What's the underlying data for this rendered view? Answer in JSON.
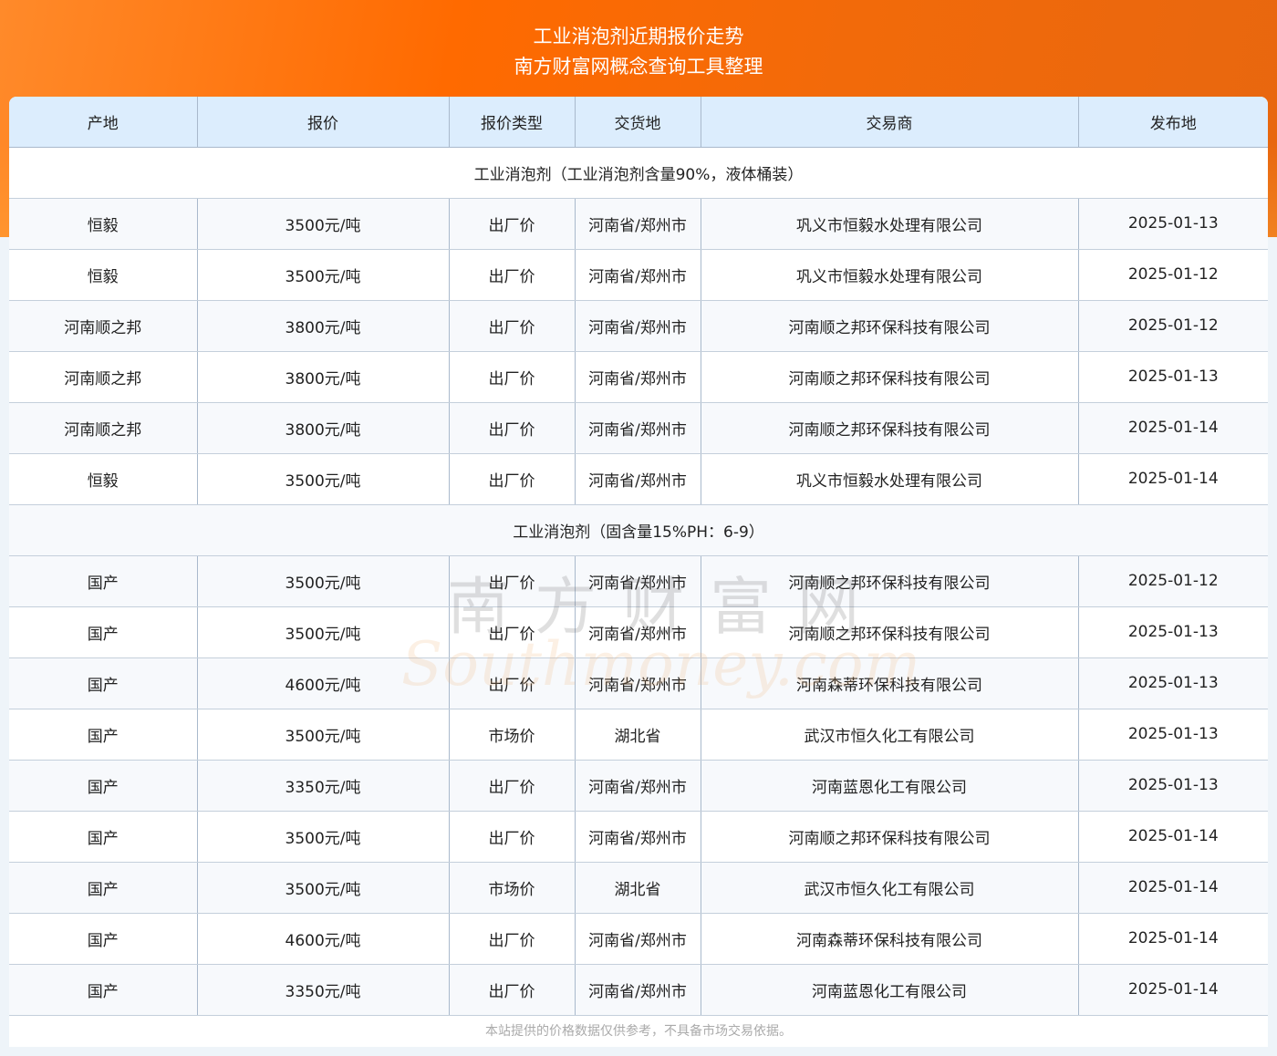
{
  "header": {
    "title": "工业消泡剂近期报价走势",
    "subtitle": "南方财富网概念查询工具整理"
  },
  "columns": [
    "产地",
    "报价",
    "报价类型",
    "交货地",
    "交易商",
    "发布地"
  ],
  "sections": [
    {
      "title": "工业消泡剂（工业消泡剂含量90%，液体桶装）",
      "rows": [
        [
          "恒毅",
          "3500元/吨",
          "出厂价",
          "河南省/郑州市",
          "巩义市恒毅水处理有限公司",
          "2025-01-13"
        ],
        [
          "恒毅",
          "3500元/吨",
          "出厂价",
          "河南省/郑州市",
          "巩义市恒毅水处理有限公司",
          "2025-01-12"
        ],
        [
          "河南顺之邦",
          "3800元/吨",
          "出厂价",
          "河南省/郑州市",
          "河南顺之邦环保科技有限公司",
          "2025-01-12"
        ],
        [
          "河南顺之邦",
          "3800元/吨",
          "出厂价",
          "河南省/郑州市",
          "河南顺之邦环保科技有限公司",
          "2025-01-13"
        ],
        [
          "河南顺之邦",
          "3800元/吨",
          "出厂价",
          "河南省/郑州市",
          "河南顺之邦环保科技有限公司",
          "2025-01-14"
        ],
        [
          "恒毅",
          "3500元/吨",
          "出厂价",
          "河南省/郑州市",
          "巩义市恒毅水处理有限公司",
          "2025-01-14"
        ]
      ]
    },
    {
      "title": "工业消泡剂（固含量15%PH：6-9）",
      "rows": [
        [
          "国产",
          "3500元/吨",
          "出厂价",
          "河南省/郑州市",
          "河南顺之邦环保科技有限公司",
          "2025-01-12"
        ],
        [
          "国产",
          "3500元/吨",
          "出厂价",
          "河南省/郑州市",
          "河南顺之邦环保科技有限公司",
          "2025-01-13"
        ],
        [
          "国产",
          "4600元/吨",
          "出厂价",
          "河南省/郑州市",
          "河南森蒂环保科技有限公司",
          "2025-01-13"
        ],
        [
          "国产",
          "3500元/吨",
          "市场价",
          "湖北省",
          "武汉市恒久化工有限公司",
          "2025-01-13"
        ],
        [
          "国产",
          "3350元/吨",
          "出厂价",
          "河南省/郑州市",
          "河南蓝恩化工有限公司",
          "2025-01-13"
        ],
        [
          "国产",
          "3500元/吨",
          "出厂价",
          "河南省/郑州市",
          "河南顺之邦环保科技有限公司",
          "2025-01-14"
        ],
        [
          "国产",
          "3500元/吨",
          "市场价",
          "湖北省",
          "武汉市恒久化工有限公司",
          "2025-01-14"
        ],
        [
          "国产",
          "4600元/吨",
          "出厂价",
          "河南省/郑州市",
          "河南森蒂环保科技有限公司",
          "2025-01-14"
        ],
        [
          "国产",
          "3350元/吨",
          "出厂价",
          "河南省/郑州市",
          "河南蓝恩化工有限公司",
          "2025-01-14"
        ]
      ]
    }
  ],
  "footer": "本站提供的价格数据仅供参考，不具备市场交易依据。",
  "watermark": {
    "cn": "南方财富网",
    "en": "Southmoney.com"
  },
  "colors": {
    "banner": "#ff6a00",
    "header_bg": "#dcedfd",
    "border": "#a9b9cc"
  }
}
